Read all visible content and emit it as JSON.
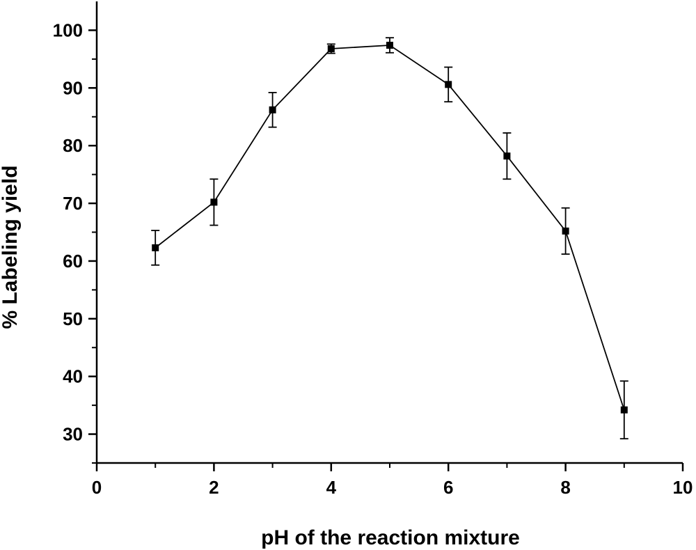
{
  "chart_data": {
    "type": "line",
    "title": "",
    "xlabel": "pH of the reaction mixture",
    "ylabel": "% Labeling yield",
    "xlim": [
      0,
      10
    ],
    "ylim": [
      25,
      105
    ],
    "xticks": [
      0,
      2,
      4,
      6,
      8,
      10
    ],
    "yticks": [
      30,
      40,
      50,
      60,
      70,
      80,
      90,
      100
    ],
    "grid": false,
    "series": [
      {
        "marker": "square",
        "color": "#000000",
        "x": [
          1,
          2,
          3,
          4,
          5,
          6,
          7,
          8,
          9
        ],
        "y": [
          62.3,
          70.2,
          86.2,
          96.8,
          97.4,
          90.6,
          78.2,
          65.2,
          34.2
        ],
        "error": [
          3.0,
          4.0,
          3.0,
          0.8,
          1.3,
          3.0,
          4.0,
          4.0,
          5.0
        ]
      }
    ]
  }
}
